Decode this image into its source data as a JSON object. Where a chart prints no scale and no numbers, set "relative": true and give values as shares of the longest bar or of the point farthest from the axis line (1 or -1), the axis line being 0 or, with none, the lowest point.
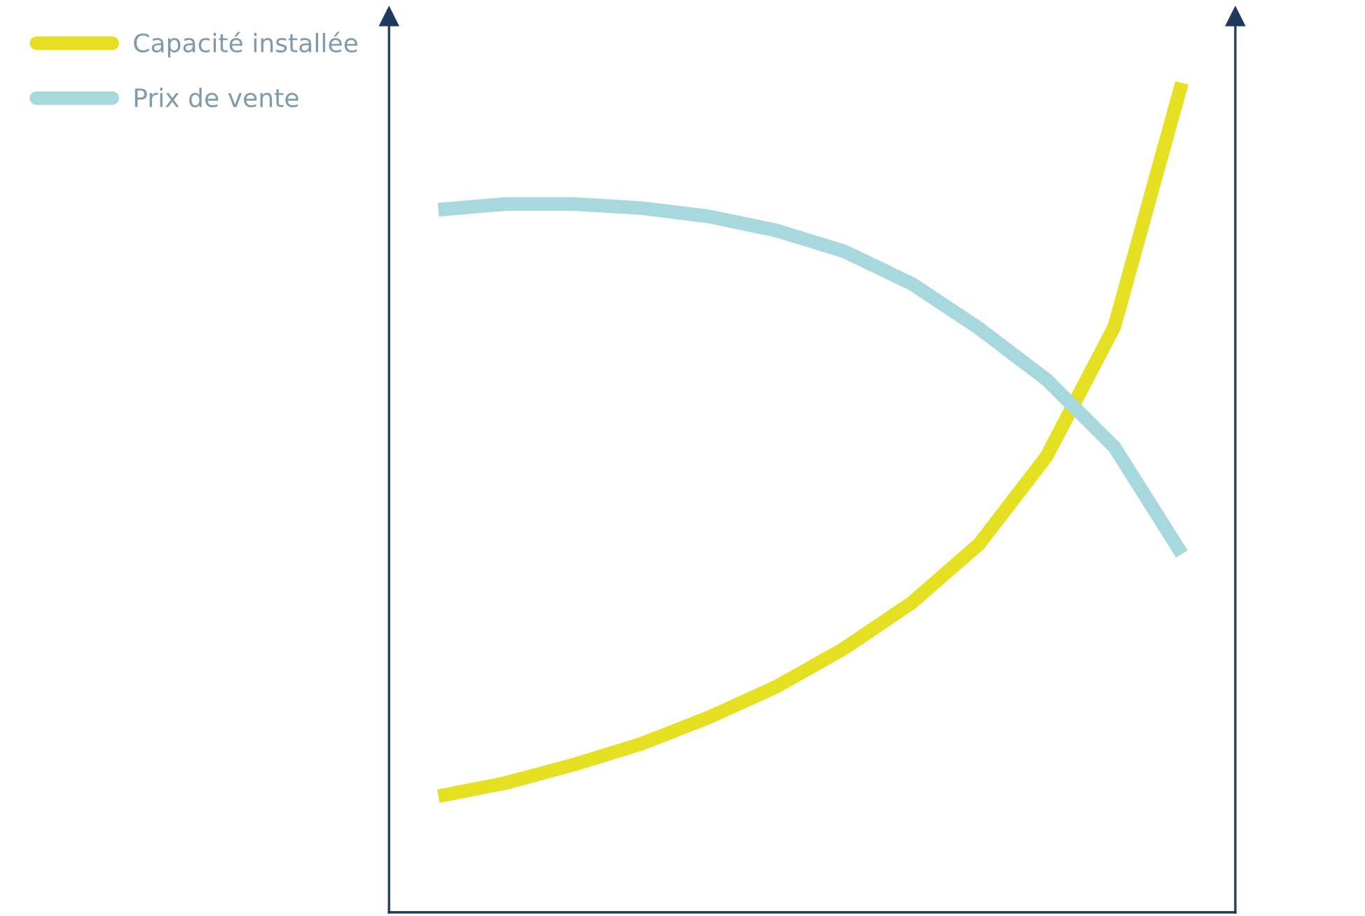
{
  "chart_data": {
    "type": "line",
    "relative": true,
    "categories": [
      null,
      null,
      null,
      null,
      null,
      null,
      null,
      null,
      null,
      null,
      null,
      null
    ],
    "series": [
      {
        "name": "Capacité installée",
        "color": "#e6e022",
        "values": [
          0.14,
          0.156,
          0.178,
          0.203,
          0.235,
          0.272,
          0.318,
          0.373,
          0.444,
          0.55,
          0.706,
          1.0
        ]
      },
      {
        "name": "Prix de vente",
        "color": "#a6d8de",
        "values": [
          0.847,
          0.854,
          0.854,
          0.849,
          0.839,
          0.822,
          0.797,
          0.758,
          0.704,
          0.642,
          0.561,
          0.432
        ]
      }
    ],
    "legend": "top left",
    "grid": false,
    "line_style": "solid",
    "marker": "none"
  }
}
